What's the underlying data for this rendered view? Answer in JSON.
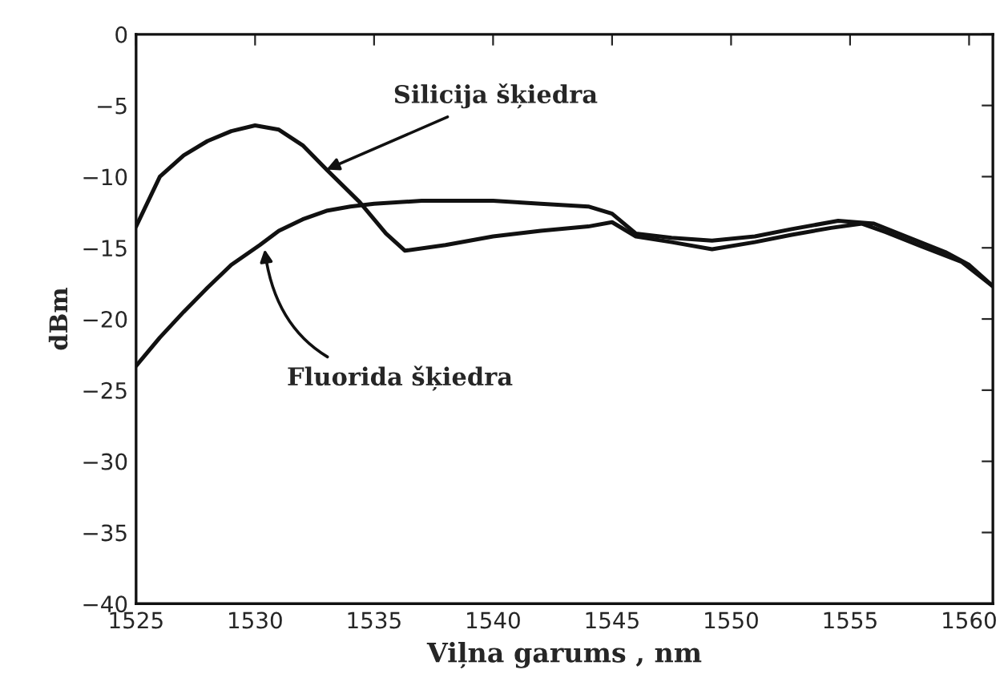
{
  "chart_data": {
    "type": "line",
    "xlabel": "Viļna garums , nm",
    "ylabel": "dBm",
    "xlim": [
      1525,
      1561
    ],
    "xticks": [
      1525,
      1530,
      1535,
      1540,
      1545,
      1550,
      1555,
      1560
    ],
    "ylim": [
      -40,
      0
    ],
    "yticks": [
      -40,
      -35,
      -30,
      -25,
      -20,
      -15,
      -10,
      -5,
      0
    ],
    "grid": false,
    "marker": "none",
    "line_style": "solid",
    "series": [
      {
        "color": "#111111",
        "x": [
          1525,
          1526,
          1527,
          1528,
          1529,
          1530,
          1531,
          1532,
          1533,
          1534.4,
          1535.5,
          1536.3,
          1538,
          1540,
          1542,
          1544,
          1545,
          1546,
          1547.5,
          1549.2,
          1551,
          1552.5,
          1554.2,
          1555.5,
          1556.5,
          1558,
          1559.7,
          1561
        ],
        "values": [
          -13.5,
          -10,
          -8.5,
          -7.5,
          -6.8,
          -6.4,
          -6.7,
          -7.8,
          -9.5,
          -11.8,
          -14,
          -15.2,
          -14.8,
          -14.2,
          -13.8,
          -13.5,
          -13.2,
          -14.2,
          -14.6,
          -15.1,
          -14.6,
          -14.1,
          -13.6,
          -13.3,
          -13.9,
          -14.9,
          -16,
          -17.7
        ]
      },
      {
        "color": "#111111",
        "x": [
          1525,
          1526,
          1527,
          1528,
          1529,
          1530.2,
          1531,
          1532,
          1533,
          1534,
          1535,
          1537,
          1540,
          1542,
          1544,
          1545,
          1546,
          1547.5,
          1549.2,
          1551,
          1552.5,
          1554.5,
          1556,
          1557.5,
          1559,
          1560,
          1561
        ],
        "values": [
          -23.3,
          -21.3,
          -19.5,
          -17.8,
          -16.2,
          -14.8,
          -13.8,
          -13,
          -12.4,
          -12.1,
          -11.9,
          -11.7,
          -11.7,
          -11.9,
          -12.1,
          -12.6,
          -14,
          -14.3,
          -14.5,
          -14.2,
          -13.7,
          -13.1,
          -13.3,
          -14.3,
          -15.3,
          -16.2,
          -17.7
        ]
      }
    ],
    "annotations": [
      {
        "text": "Silicija šķiedra",
        "x": 1533,
        "y": -9.5
      },
      {
        "text": "Fluorida šķiedra",
        "x": 1530.4,
        "y": -15.1
      }
    ]
  }
}
